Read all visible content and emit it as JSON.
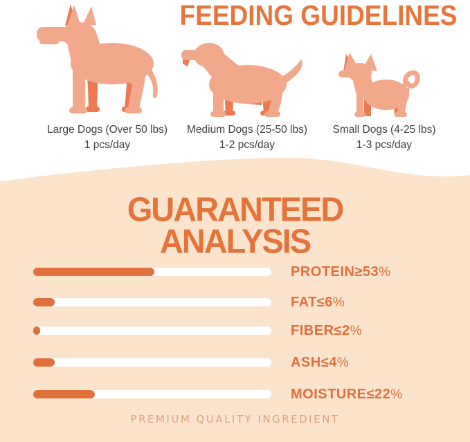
{
  "feeding": {
    "title": "FEEDING GUIDELINES",
    "dogs": [
      {
        "size": "large",
        "icon": "large-dog-icon",
        "label_line1": "Large Dogs (Over 50 lbs)",
        "label_line2": "1 pcs/day"
      },
      {
        "size": "medium",
        "icon": "medium-dog-icon",
        "label_line1": "Medium Dogs (25-50 lbs)",
        "label_line2": "1-2 pcs/day"
      },
      {
        "size": "small",
        "icon": "small-dog-icon",
        "label_line1": "Small Dogs (4-25 lbs)",
        "label_line2": "1-3 pcs/day"
      }
    ]
  },
  "analysis": {
    "title_line1": "GUARANTEED",
    "title_line2": "ANALYSIS",
    "percent_sign": "%",
    "rows": [
      {
        "name": "PROTEIN",
        "symbol": "≥",
        "value": "53",
        "fill_pct": 51
      },
      {
        "name": "FAT",
        "symbol": "≤",
        "value": "6",
        "fill_pct": 9
      },
      {
        "name": "FIBER",
        "symbol": "≤",
        "value": "2",
        "fill_pct": 3
      },
      {
        "name": "ASH",
        "symbol": "≤",
        "value": "4",
        "fill_pct": 9
      },
      {
        "name": "MOISTURE",
        "symbol": "≤",
        "value": "22",
        "fill_pct": 26
      }
    ],
    "footer": "PREMIUM QUALITY INGREDIENT"
  },
  "chart_data": {
    "type": "bar",
    "categories": [
      "PROTEIN",
      "FAT",
      "FIBER",
      "ASH",
      "MOISTURE"
    ],
    "values": [
      53,
      6,
      2,
      4,
      22
    ],
    "comparators": [
      "≥",
      "≤",
      "≤",
      "≤",
      "≤"
    ],
    "unit": "%",
    "title": "GUARANTEED ANALYSIS",
    "xlim": [
      0,
      100
    ],
    "bar_track_color": "#FFFFFF",
    "bar_fill_color": "#E1703C"
  },
  "colors": {
    "accent_orange": "#E5743C",
    "bar_fill": "#E1703C",
    "peach_background": "#FBE4CB",
    "dog_body": "#F2A88B",
    "dog_shadow": "#EC7950",
    "caption_text": "#E39E80",
    "label_text": "#3F3F3F"
  }
}
